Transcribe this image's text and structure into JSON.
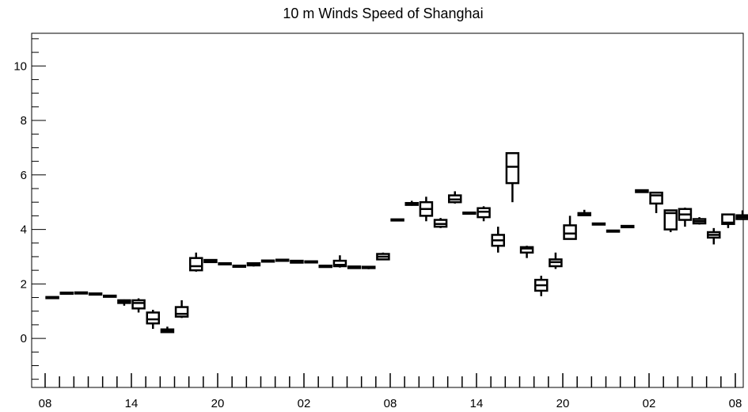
{
  "chart_data": {
    "type": "boxplot",
    "title": "10 m Winds Speed of Shanghai",
    "xlabel": "",
    "ylabel": "",
    "ylim": [
      -1.8,
      11.2
    ],
    "yticks": [
      0,
      2,
      4,
      6,
      8,
      10
    ],
    "x_tick_labels": [
      "08",
      "14",
      "20",
      "02",
      "08",
      "14",
      "20",
      "02",
      "08"
    ],
    "x_tick_label_every": 6,
    "grid": false,
    "legend": "none",
    "boxes": [
      {
        "min": 1.5,
        "q1": 1.5,
        "median": 1.5,
        "q3": 1.52,
        "max": 1.52
      },
      {
        "min": 1.65,
        "q1": 1.65,
        "median": 1.67,
        "q3": 1.68,
        "max": 1.7
      },
      {
        "min": 1.67,
        "q1": 1.67,
        "median": 1.68,
        "q3": 1.69,
        "max": 1.7
      },
      {
        "min": 1.63,
        "q1": 1.63,
        "median": 1.64,
        "q3": 1.65,
        "max": 1.66
      },
      {
        "min": 1.52,
        "q1": 1.54,
        "median": 1.55,
        "q3": 1.57,
        "max": 1.59
      },
      {
        "min": 1.2,
        "q1": 1.3,
        "median": 1.35,
        "q3": 1.4,
        "max": 1.43
      },
      {
        "min": 0.95,
        "q1": 1.1,
        "median": 1.3,
        "q3": 1.4,
        "max": 1.47
      },
      {
        "min": 0.35,
        "q1": 0.55,
        "median": 0.7,
        "q3": 0.95,
        "max": 1.05
      },
      {
        "min": 0.22,
        "q1": 0.23,
        "median": 0.28,
        "q3": 0.33,
        "max": 0.43
      },
      {
        "min": 0.75,
        "q1": 0.8,
        "median": 0.9,
        "q3": 1.15,
        "max": 1.4
      },
      {
        "min": 2.45,
        "q1": 2.5,
        "median": 2.65,
        "q3": 2.95,
        "max": 3.15
      },
      {
        "min": 2.78,
        "q1": 2.8,
        "median": 2.84,
        "q3": 2.88,
        "max": 2.9
      },
      {
        "min": 2.73,
        "q1": 2.74,
        "median": 2.75,
        "q3": 2.76,
        "max": 2.77
      },
      {
        "min": 2.64,
        "q1": 2.65,
        "median": 2.66,
        "q3": 2.67,
        "max": 2.68
      },
      {
        "min": 2.64,
        "q1": 2.68,
        "median": 2.72,
        "q3": 2.76,
        "max": 2.78
      },
      {
        "min": 2.8,
        "q1": 2.82,
        "median": 2.84,
        "q3": 2.86,
        "max": 2.88
      },
      {
        "min": 2.86,
        "q1": 2.87,
        "median": 2.88,
        "q3": 2.89,
        "max": 2.9
      },
      {
        "min": 2.76,
        "q1": 2.78,
        "median": 2.82,
        "q3": 2.85,
        "max": 2.88
      },
      {
        "min": 2.8,
        "q1": 2.81,
        "median": 2.82,
        "q3": 2.83,
        "max": 2.84
      },
      {
        "min": 2.6,
        "q1": 2.62,
        "median": 2.64,
        "q3": 2.67,
        "max": 2.7
      },
      {
        "min": 2.6,
        "q1": 2.65,
        "median": 2.7,
        "q3": 2.85,
        "max": 3.05
      },
      {
        "min": 2.56,
        "q1": 2.58,
        "median": 2.61,
        "q3": 2.64,
        "max": 2.66
      },
      {
        "min": 2.54,
        "q1": 2.58,
        "median": 2.6,
        "q3": 2.63,
        "max": 2.66
      },
      {
        "min": 2.9,
        "q1": 2.9,
        "median": 3.0,
        "q3": 3.1,
        "max": 3.15
      },
      {
        "min": 4.32,
        "q1": 4.33,
        "median": 4.35,
        "q3": 4.37,
        "max": 4.38
      },
      {
        "min": 4.87,
        "q1": 4.9,
        "median": 4.93,
        "q3": 4.97,
        "max": 5.05
      },
      {
        "min": 4.3,
        "q1": 4.5,
        "median": 4.75,
        "q3": 5.0,
        "max": 5.2
      },
      {
        "min": 4.05,
        "q1": 4.1,
        "median": 4.2,
        "q3": 4.35,
        "max": 4.42
      },
      {
        "min": 4.95,
        "q1": 5.0,
        "median": 5.1,
        "q3": 5.25,
        "max": 5.4
      },
      {
        "min": 4.57,
        "q1": 4.58,
        "median": 4.6,
        "q3": 4.62,
        "max": 4.64
      },
      {
        "min": 4.3,
        "q1": 4.45,
        "median": 4.65,
        "q3": 4.78,
        "max": 4.85
      },
      {
        "min": 3.15,
        "q1": 3.4,
        "median": 3.6,
        "q3": 3.8,
        "max": 4.1
      },
      {
        "min": 5.0,
        "q1": 5.7,
        "median": 6.3,
        "q3": 6.8,
        "max": 6.8
      },
      {
        "min": 2.95,
        "q1": 3.15,
        "median": 3.3,
        "q3": 3.35,
        "max": 3.4
      },
      {
        "min": 1.55,
        "q1": 1.75,
        "median": 1.95,
        "q3": 2.15,
        "max": 2.3
      },
      {
        "min": 2.55,
        "q1": 2.65,
        "median": 2.8,
        "q3": 2.9,
        "max": 3.15
      },
      {
        "min": 3.65,
        "q1": 3.65,
        "median": 3.85,
        "q3": 4.15,
        "max": 4.5
      },
      {
        "min": 4.5,
        "q1": 4.52,
        "median": 4.55,
        "q3": 4.6,
        "max": 4.72
      },
      {
        "min": 4.17,
        "q1": 4.18,
        "median": 4.2,
        "q3": 4.22,
        "max": 4.24
      },
      {
        "min": 3.93,
        "q1": 3.94,
        "median": 3.95,
        "q3": 3.96,
        "max": 3.97
      },
      {
        "min": 4.07,
        "q1": 4.08,
        "median": 4.1,
        "q3": 4.13,
        "max": 4.16
      },
      {
        "min": 5.35,
        "q1": 5.37,
        "median": 5.4,
        "q3": 5.44,
        "max": 5.46
      },
      {
        "min": 4.6,
        "q1": 4.95,
        "median": 5.25,
        "q3": 5.35,
        "max": 5.35
      },
      {
        "min": 3.9,
        "q1": 4.0,
        "median": 4.6,
        "q3": 4.7,
        "max": 4.7
      },
      {
        "min": 4.1,
        "q1": 4.35,
        "median": 4.55,
        "q3": 4.75,
        "max": 4.8
      },
      {
        "min": 4.18,
        "q1": 4.22,
        "median": 4.3,
        "q3": 4.38,
        "max": 4.45
      },
      {
        "min": 3.45,
        "q1": 3.7,
        "median": 3.8,
        "q3": 3.9,
        "max": 4.05
      },
      {
        "min": 4.05,
        "q1": 4.2,
        "median": 4.25,
        "q3": 4.55,
        "max": 4.55
      },
      {
        "min": 4.35,
        "q1": 4.38,
        "median": 4.45,
        "q3": 4.52,
        "max": 4.7
      }
    ]
  }
}
